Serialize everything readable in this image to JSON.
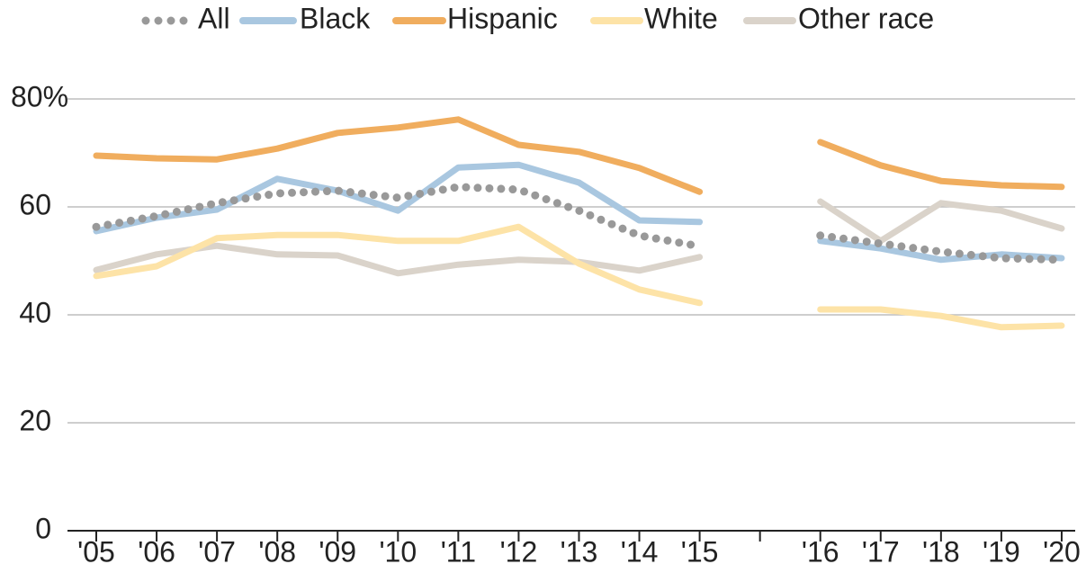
{
  "chart_data": {
    "type": "line",
    "categories": [
      "'05",
      "'06",
      "'07",
      "'08",
      "'09",
      "'10",
      "'11",
      "'12",
      "'13",
      "'14",
      "'15",
      null,
      "'16",
      "'17",
      "'18",
      "'19",
      "'20"
    ],
    "series": [
      {
        "name": "All",
        "color": "#999999",
        "dotted": true,
        "values": [
          56.3,
          58.3,
          60.7,
          62.5,
          63,
          61.7,
          63.7,
          63.2,
          59.3,
          54.7,
          52.7,
          null,
          54.7,
          53.2,
          51.7,
          50.5,
          50.2
        ]
      },
      {
        "name": "Black",
        "color": "#a9c7e0",
        "values": [
          55.5,
          58,
          59.5,
          65.2,
          63,
          59.3,
          67.3,
          67.8,
          64.5,
          57.5,
          57.2,
          null,
          53.7,
          52.3,
          50.2,
          51.2,
          50.5
        ]
      },
      {
        "name": "Hispanic",
        "color": "#f0ad5e",
        "values": [
          69.5,
          69,
          68.8,
          70.8,
          73.7,
          74.7,
          76.2,
          71.5,
          70.2,
          67.2,
          62.8,
          null,
          72,
          67.7,
          64.8,
          64,
          63.7
        ]
      },
      {
        "name": "White",
        "color": "#fde3a7",
        "values": [
          47.2,
          49,
          54.2,
          54.8,
          54.8,
          53.7,
          53.7,
          56.3,
          49.5,
          44.7,
          42.2,
          null,
          41,
          41,
          39.8,
          37.7,
          38
        ]
      },
      {
        "name": "Other race",
        "color": "#dad3ca",
        "values": [
          48.3,
          51.2,
          52.8,
          51.2,
          51,
          47.7,
          49.3,
          50.2,
          49.8,
          48.2,
          50.7,
          null,
          61,
          53.7,
          60.7,
          59.3,
          56
        ]
      }
    ],
    "ylim": [
      0,
      80
    ],
    "yticks": [
      0,
      20,
      40,
      60,
      {
        "value": 80,
        "label": "80%"
      }
    ],
    "grid": true
  }
}
